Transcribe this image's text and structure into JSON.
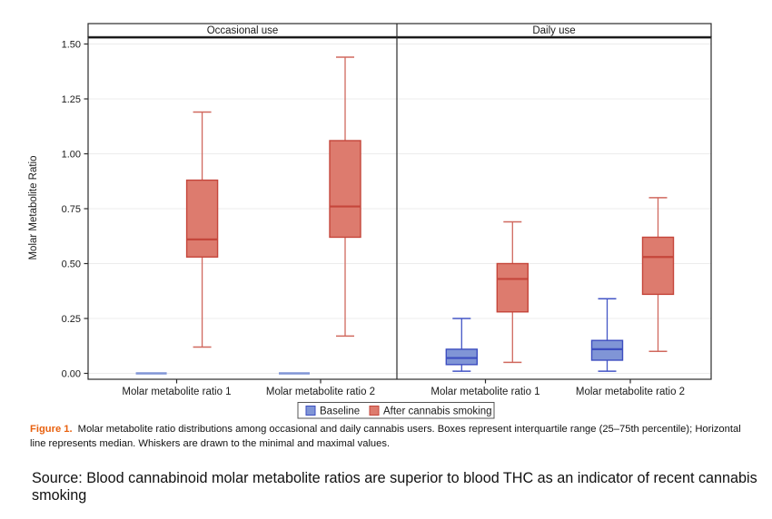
{
  "figure": {
    "caption_label": "Figure 1.",
    "caption_text": "Molar metabolite ratio distributions among occasional and daily cannabis users. Boxes represent interquartile range (25–75th percentile); Horizontal line represents median. Whiskers are drawn to the minimal and maximal values.",
    "source_text": "Source: Blood cannabinoid molar metabolite ratios are superior to blood THC as an indicator of recent cannabis smoking"
  },
  "chart_data": {
    "type": "box",
    "title": "",
    "ylabel": "Molar Metabolite Ratio",
    "ylim": [
      -0.03,
      1.53
    ],
    "yticks": [
      "0.00",
      "0.25",
      "0.50",
      "0.75",
      "1.00",
      "1.25",
      "1.50"
    ],
    "ytick_values": [
      0,
      0.25,
      0.5,
      0.75,
      1.0,
      1.25,
      1.5
    ],
    "grid": "horizontal",
    "legend_position": "bottom",
    "legend": [
      "Baseline",
      "After cannabis smoking"
    ],
    "panels": [
      {
        "label": "Occasional use",
        "categories": [
          "Molar metabolite ratio 1",
          "Molar metabolite ratio 2"
        ],
        "series": [
          {
            "name": "Baseline",
            "boxes": [
              {
                "min": 0,
                "q1": 0,
                "median": 0,
                "q3": 0,
                "max": 0
              },
              {
                "min": 0,
                "q1": 0,
                "median": 0,
                "q3": 0,
                "max": 0
              }
            ]
          },
          {
            "name": "After cannabis smoking",
            "boxes": [
              {
                "min": 0.12,
                "q1": 0.53,
                "median": 0.61,
                "q3": 0.88,
                "max": 1.19
              },
              {
                "min": 0.17,
                "q1": 0.62,
                "median": 0.76,
                "q3": 1.06,
                "max": 1.44
              }
            ]
          }
        ]
      },
      {
        "label": "Daily use",
        "categories": [
          "Molar metabolite ratio 1",
          "Molar metabolite ratio 2"
        ],
        "series": [
          {
            "name": "Baseline",
            "boxes": [
              {
                "min": 0.01,
                "q1": 0.04,
                "median": 0.07,
                "q3": 0.11,
                "max": 0.25
              },
              {
                "min": 0.01,
                "q1": 0.06,
                "median": 0.11,
                "q3": 0.15,
                "max": 0.34
              }
            ]
          },
          {
            "name": "After cannabis smoking",
            "boxes": [
              {
                "min": 0.05,
                "q1": 0.28,
                "median": 0.43,
                "q3": 0.5,
                "max": 0.69
              },
              {
                "min": 0.1,
                "q1": 0.36,
                "median": 0.53,
                "q3": 0.62,
                "max": 0.8
              }
            ]
          }
        ]
      }
    ],
    "colors": {
      "baseline_fill": "#8095d6",
      "baseline_border": "#3d4ec0",
      "baseline_whisker": "#4355c6",
      "after_fill": "#dd7b6e",
      "after_border": "#c5463b",
      "after_whisker": "#d0685e",
      "grid": "#ececec",
      "caption_label": "#e8610f"
    }
  }
}
